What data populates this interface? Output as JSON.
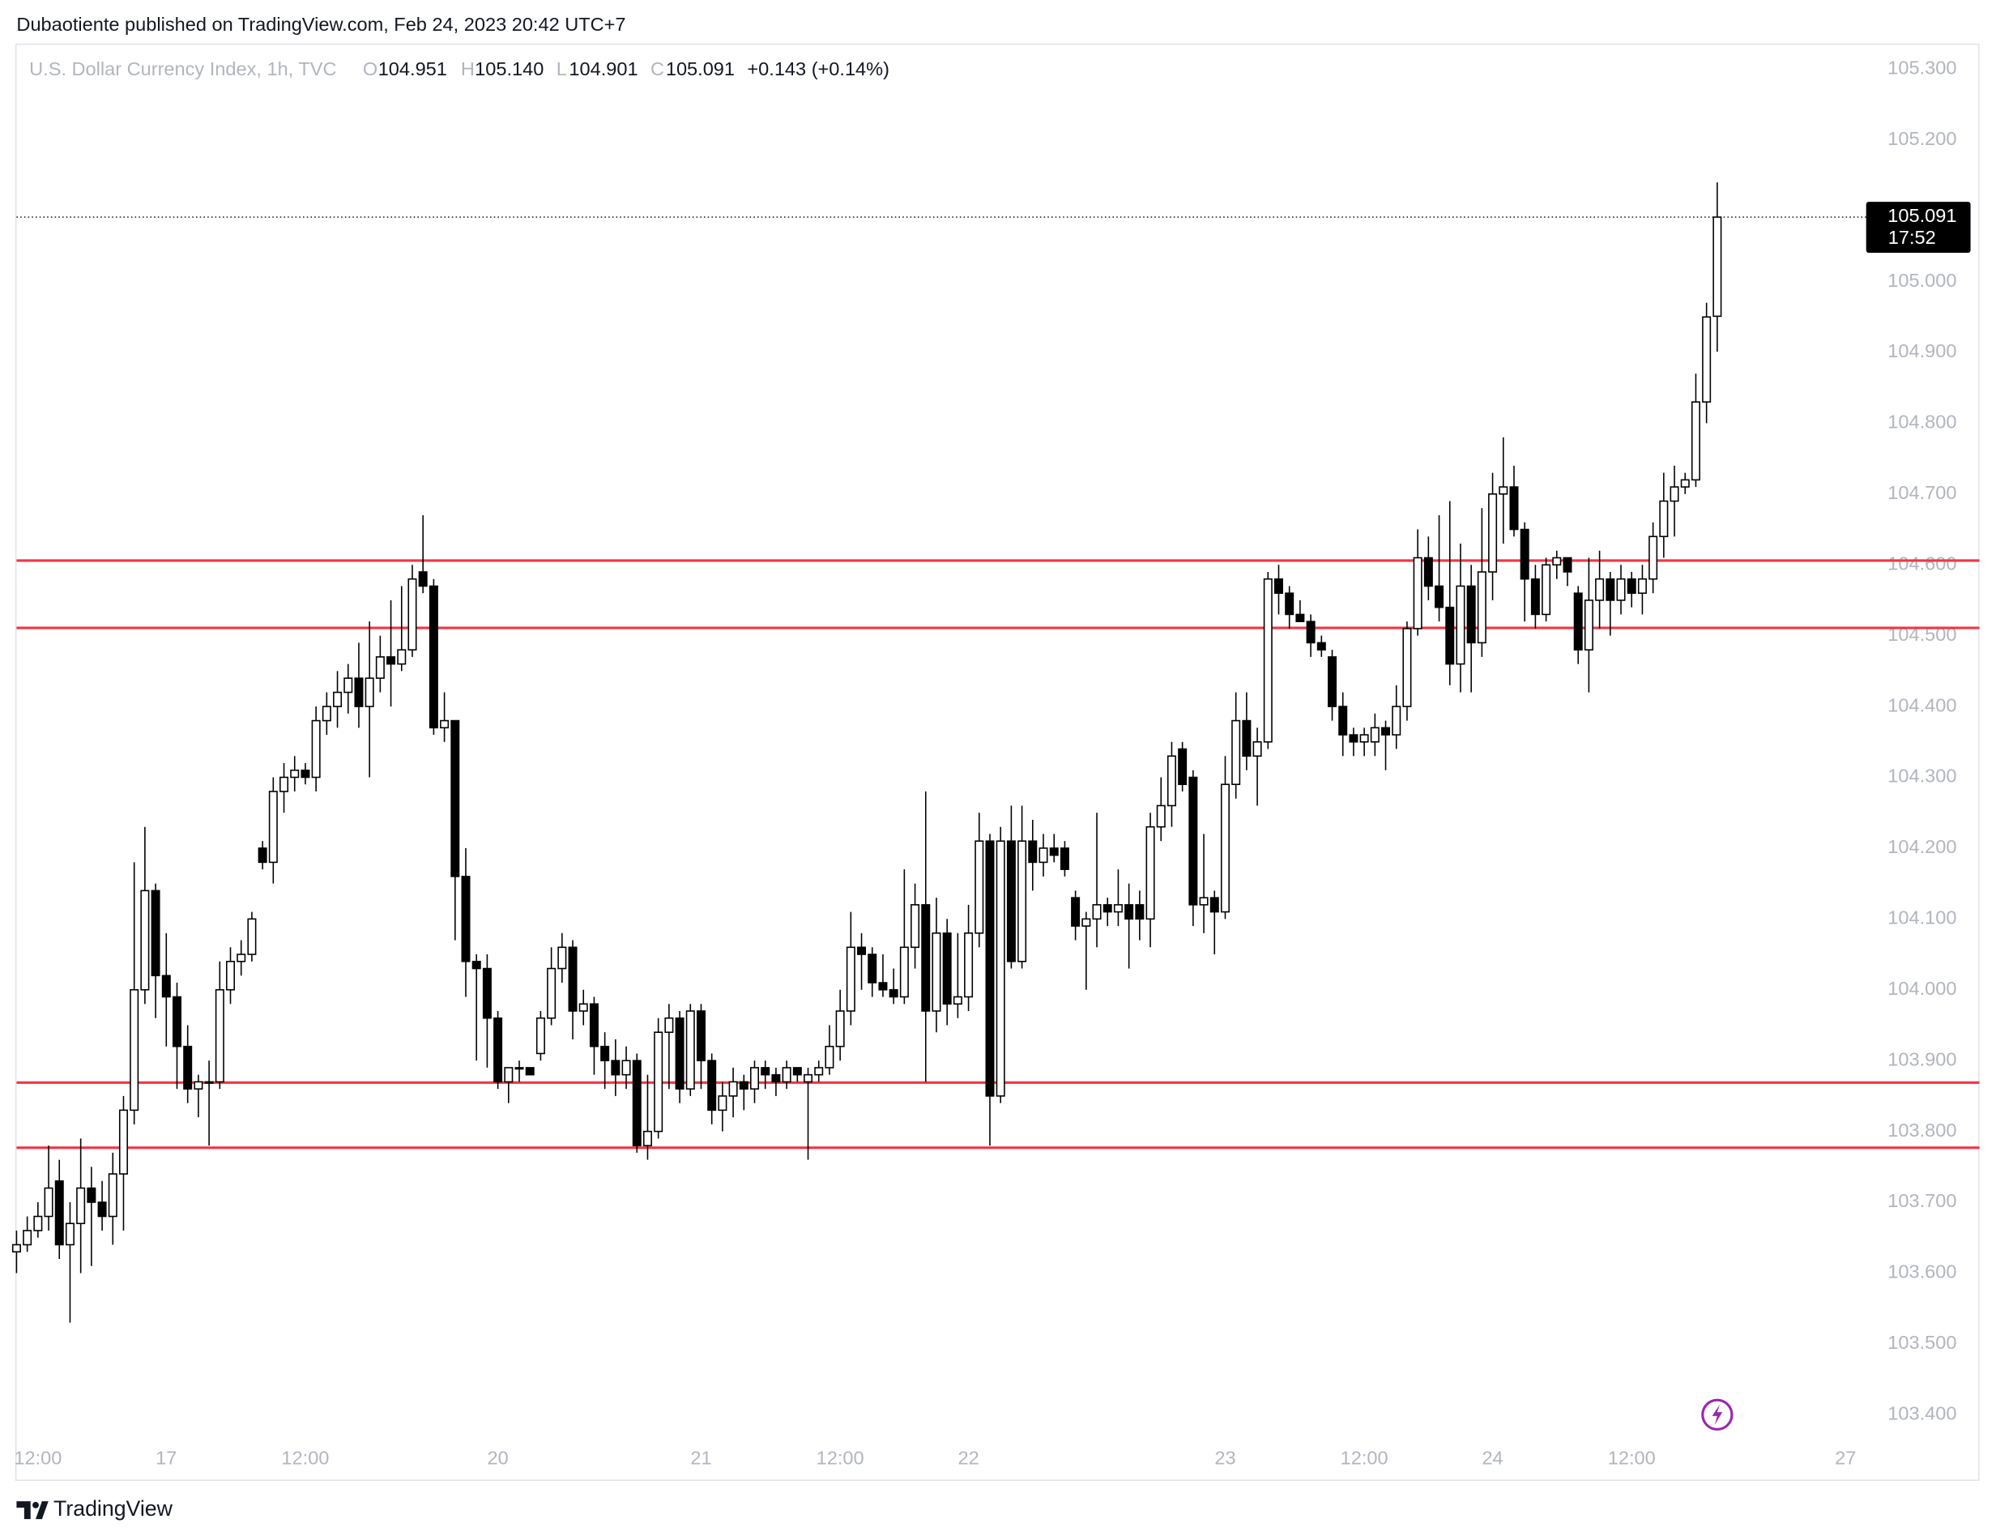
{
  "header": {
    "published": "Dubaotiente published on TradingView.com, Feb 24, 2023 20:42 UTC+7",
    "brand": "TradingView"
  },
  "chart_data": {
    "type": "candlestick",
    "symbol": "U.S. Dollar Currency Index, 1h, TVC",
    "legend": {
      "o_key": "O",
      "o": "104.951",
      "h_key": "H",
      "h": "105.140",
      "l_key": "L",
      "l": "104.901",
      "c_key": "C",
      "c": "105.091",
      "change": "+0.143 (+0.14%)"
    },
    "last_price_label": "105.091",
    "countdown": "17:52",
    "up_color": "#ffffff",
    "down_color": "#000000",
    "wick_color": "#000000",
    "hlines": [
      104.606,
      104.511,
      103.869,
      103.777
    ],
    "hline_color": "#f23645",
    "ylim": [
      103.4,
      105.3
    ],
    "yticks": [
      {
        "value": 103.4,
        "label": "103.400"
      },
      {
        "value": 103.5,
        "label": "103.500"
      },
      {
        "value": 103.6,
        "label": "103.600"
      },
      {
        "value": 103.7,
        "label": "103.700"
      },
      {
        "value": 103.8,
        "label": "103.800"
      },
      {
        "value": 103.9,
        "label": "103.900"
      },
      {
        "value": 104.0,
        "label": "104.000"
      },
      {
        "value": 104.1,
        "label": "104.100"
      },
      {
        "value": 104.2,
        "label": "104.200"
      },
      {
        "value": 104.3,
        "label": "104.300"
      },
      {
        "value": 104.4,
        "label": "104.400"
      },
      {
        "value": 104.5,
        "label": "104.500"
      },
      {
        "value": 104.6,
        "label": "104.600"
      },
      {
        "value": 104.7,
        "label": "104.700"
      },
      {
        "value": 104.8,
        "label": "104.800"
      },
      {
        "value": 104.9,
        "label": "104.900"
      },
      {
        "value": 105.0,
        "label": "105.000"
      },
      {
        "value": 105.1,
        "label": "105.100"
      },
      {
        "value": 105.2,
        "label": "105.200"
      },
      {
        "value": 105.3,
        "label": "105.300"
      }
    ],
    "xticks": [
      {
        "value": 2,
        "label": "12:00"
      },
      {
        "value": 14,
        "label": "17"
      },
      {
        "value": 27,
        "label": "12:00"
      },
      {
        "value": 45,
        "label": "20"
      },
      {
        "value": 64,
        "label": "21"
      },
      {
        "value": 77,
        "label": "12:00"
      },
      {
        "value": 89,
        "label": "22"
      },
      {
        "value": 113,
        "label": "23"
      },
      {
        "value": 126,
        "label": "12:00"
      },
      {
        "value": 138,
        "label": "24"
      },
      {
        "value": 151,
        "label": "12:00"
      },
      {
        "value": 171,
        "label": "27"
      }
    ],
    "candles": [
      [
        103.63,
        103.66,
        103.6,
        103.64
      ],
      [
        103.64,
        103.68,
        103.63,
        103.66
      ],
      [
        103.66,
        103.7,
        103.65,
        103.68
      ],
      [
        103.68,
        103.78,
        103.66,
        103.72
      ],
      [
        103.73,
        103.76,
        103.62,
        103.64
      ],
      [
        103.64,
        103.7,
        103.53,
        103.67
      ],
      [
        103.67,
        103.79,
        103.6,
        103.72
      ],
      [
        103.72,
        103.75,
        103.61,
        103.7
      ],
      [
        103.7,
        103.73,
        103.66,
        103.68
      ],
      [
        103.68,
        103.77,
        103.64,
        103.74
      ],
      [
        103.74,
        103.85,
        103.66,
        103.83
      ],
      [
        103.83,
        104.18,
        103.81,
        104.0
      ],
      [
        104.0,
        104.23,
        103.98,
        104.14
      ],
      [
        104.14,
        104.15,
        103.96,
        104.02
      ],
      [
        104.02,
        104.08,
        103.92,
        103.99
      ],
      [
        103.99,
        104.01,
        103.86,
        103.92
      ],
      [
        103.92,
        103.95,
        103.84,
        103.86
      ],
      [
        103.86,
        103.88,
        103.82,
        103.87
      ],
      [
        103.87,
        103.9,
        103.78,
        103.87
      ],
      [
        103.87,
        104.04,
        103.86,
        104.0
      ],
      [
        104.0,
        104.06,
        103.98,
        104.04
      ],
      [
        104.04,
        104.07,
        104.02,
        104.05
      ],
      [
        104.05,
        104.11,
        104.04,
        104.1
      ],
      [
        104.2,
        104.21,
        104.17,
        104.18
      ],
      [
        104.18,
        104.3,
        104.15,
        104.28
      ],
      [
        104.28,
        104.32,
        104.25,
        104.3
      ],
      [
        104.3,
        104.33,
        104.28,
        104.31
      ],
      [
        104.31,
        104.32,
        104.29,
        104.3
      ],
      [
        104.3,
        104.4,
        104.28,
        104.38
      ],
      [
        104.38,
        104.42,
        104.36,
        104.4
      ],
      [
        104.4,
        104.45,
        104.37,
        104.42
      ],
      [
        104.42,
        104.46,
        104.39,
        104.44
      ],
      [
        104.44,
        104.49,
        104.37,
        104.4
      ],
      [
        104.4,
        104.52,
        104.3,
        104.44
      ],
      [
        104.44,
        104.5,
        104.42,
        104.47
      ],
      [
        104.47,
        104.55,
        104.4,
        104.46
      ],
      [
        104.46,
        104.57,
        104.45,
        104.48
      ],
      [
        104.48,
        104.6,
        104.47,
        104.58
      ],
      [
        104.59,
        104.67,
        104.56,
        104.57
      ],
      [
        104.57,
        104.58,
        104.36,
        104.37
      ],
      [
        104.37,
        104.42,
        104.35,
        104.38
      ],
      [
        104.38,
        104.38,
        104.07,
        104.16
      ],
      [
        104.16,
        104.2,
        103.99,
        104.04
      ],
      [
        104.04,
        104.05,
        103.9,
        104.03
      ],
      [
        104.03,
        104.05,
        103.89,
        103.96
      ],
      [
        103.96,
        103.97,
        103.86,
        103.87
      ],
      [
        103.87,
        103.89,
        103.84,
        103.89
      ],
      [
        103.89,
        103.9,
        103.87,
        103.89
      ],
      [
        103.89,
        103.89,
        103.88,
        103.88
      ],
      [
        103.91,
        103.97,
        103.9,
        103.96
      ],
      [
        103.96,
        104.06,
        103.95,
        104.03
      ],
      [
        104.03,
        104.08,
        104.01,
        104.06
      ],
      [
        104.06,
        104.07,
        103.93,
        103.97
      ],
      [
        103.97,
        104.0,
        103.95,
        103.98
      ],
      [
        103.98,
        103.99,
        103.88,
        103.92
      ],
      [
        103.92,
        103.94,
        103.86,
        103.9
      ],
      [
        103.9,
        103.93,
        103.85,
        103.88
      ],
      [
        103.88,
        103.92,
        103.86,
        103.9
      ],
      [
        103.9,
        103.91,
        103.77,
        103.78
      ],
      [
        103.78,
        103.88,
        103.76,
        103.8
      ],
      [
        103.8,
        103.96,
        103.79,
        103.94
      ],
      [
        103.94,
        103.98,
        103.86,
        103.96
      ],
      [
        103.96,
        103.97,
        103.84,
        103.86
      ],
      [
        103.86,
        103.98,
        103.85,
        103.97
      ],
      [
        103.97,
        103.98,
        103.86,
        103.9
      ],
      [
        103.9,
        103.91,
        103.81,
        103.83
      ],
      [
        103.83,
        103.87,
        103.8,
        103.85
      ],
      [
        103.85,
        103.89,
        103.82,
        103.87
      ],
      [
        103.87,
        103.88,
        103.83,
        103.86
      ],
      [
        103.86,
        103.9,
        103.84,
        103.89
      ],
      [
        103.89,
        103.9,
        103.86,
        103.88
      ],
      [
        103.88,
        103.89,
        103.85,
        103.87
      ],
      [
        103.87,
        103.9,
        103.86,
        103.89
      ],
      [
        103.89,
        103.89,
        103.87,
        103.88
      ],
      [
        103.87,
        103.89,
        103.76,
        103.88
      ],
      [
        103.88,
        103.9,
        103.87,
        103.89
      ],
      [
        103.89,
        103.95,
        103.88,
        103.92
      ],
      [
        103.92,
        104.0,
        103.9,
        103.97
      ],
      [
        103.97,
        104.11,
        103.95,
        104.06
      ],
      [
        104.06,
        104.08,
        104.0,
        104.05
      ],
      [
        104.05,
        104.06,
        103.99,
        104.01
      ],
      [
        104.01,
        104.05,
        103.99,
        104.0
      ],
      [
        104.0,
        104.03,
        103.98,
        103.99
      ],
      [
        103.99,
        104.17,
        103.98,
        104.06
      ],
      [
        104.06,
        104.15,
        104.03,
        104.12
      ],
      [
        104.12,
        104.28,
        103.87,
        103.97
      ],
      [
        103.97,
        104.13,
        103.94,
        104.08
      ],
      [
        104.08,
        104.1,
        103.95,
        103.98
      ],
      [
        103.98,
        104.08,
        103.96,
        103.99
      ],
      [
        103.99,
        104.12,
        103.97,
        104.08
      ],
      [
        104.08,
        104.25,
        104.06,
        104.21
      ],
      [
        104.21,
        104.22,
        103.78,
        103.85
      ],
      [
        103.85,
        104.23,
        103.84,
        104.21
      ],
      [
        104.21,
        104.26,
        104.03,
        104.04
      ],
      [
        104.04,
        104.26,
        104.03,
        104.21
      ],
      [
        104.21,
        104.24,
        104.14,
        104.18
      ],
      [
        104.18,
        104.22,
        104.16,
        104.2
      ],
      [
        104.2,
        104.22,
        104.18,
        104.19
      ],
      [
        104.2,
        104.21,
        104.16,
        104.17
      ],
      [
        104.13,
        104.14,
        104.07,
        104.09
      ],
      [
        104.09,
        104.11,
        104.0,
        104.1
      ],
      [
        104.1,
        104.25,
        104.06,
        104.12
      ],
      [
        104.12,
        104.13,
        104.09,
        104.11
      ],
      [
        104.11,
        104.17,
        104.09,
        104.12
      ],
      [
        104.12,
        104.15,
        104.03,
        104.1
      ],
      [
        104.12,
        104.14,
        104.07,
        104.1
      ],
      [
        104.1,
        104.25,
        104.06,
        104.23
      ],
      [
        104.23,
        104.3,
        104.21,
        104.26
      ],
      [
        104.26,
        104.35,
        104.23,
        104.33
      ],
      [
        104.34,
        104.35,
        104.28,
        104.29
      ],
      [
        104.3,
        104.31,
        104.09,
        104.12
      ],
      [
        104.12,
        104.22,
        104.08,
        104.13
      ],
      [
        104.13,
        104.14,
        104.05,
        104.11
      ],
      [
        104.11,
        104.33,
        104.1,
        104.29
      ],
      [
        104.29,
        104.42,
        104.27,
        104.38
      ],
      [
        104.38,
        104.42,
        104.31,
        104.33
      ],
      [
        104.33,
        104.37,
        104.26,
        104.35
      ],
      [
        104.35,
        104.59,
        104.34,
        104.58
      ],
      [
        104.58,
        104.6,
        104.53,
        104.56
      ],
      [
        104.56,
        104.57,
        104.51,
        104.53
      ],
      [
        104.53,
        104.55,
        104.52,
        104.52
      ],
      [
        104.52,
        104.53,
        104.47,
        104.49
      ],
      [
        104.49,
        104.5,
        104.47,
        104.48
      ],
      [
        104.47,
        104.48,
        104.38,
        104.4
      ],
      [
        104.4,
        104.42,
        104.33,
        104.36
      ],
      [
        104.36,
        104.37,
        104.33,
        104.35
      ],
      [
        104.35,
        104.37,
        104.33,
        104.36
      ],
      [
        104.35,
        104.39,
        104.33,
        104.37
      ],
      [
        104.37,
        104.38,
        104.31,
        104.36
      ],
      [
        104.36,
        104.43,
        104.34,
        104.4
      ],
      [
        104.4,
        104.52,
        104.38,
        104.51
      ],
      [
        104.51,
        104.65,
        104.5,
        104.61
      ],
      [
        104.61,
        104.64,
        104.55,
        104.57
      ],
      [
        104.57,
        104.67,
        104.52,
        104.54
      ],
      [
        104.54,
        104.69,
        104.43,
        104.46
      ],
      [
        104.46,
        104.63,
        104.42,
        104.57
      ],
      [
        104.57,
        104.6,
        104.42,
        104.49
      ],
      [
        104.49,
        104.68,
        104.47,
        104.59
      ],
      [
        104.59,
        104.73,
        104.55,
        104.7
      ],
      [
        104.7,
        104.78,
        104.63,
        104.71
      ],
      [
        104.71,
        104.74,
        104.64,
        104.65
      ],
      [
        104.65,
        104.66,
        104.52,
        104.58
      ],
      [
        104.58,
        104.6,
        104.51,
        104.53
      ],
      [
        104.53,
        104.61,
        104.52,
        104.6
      ],
      [
        104.6,
        104.62,
        104.58,
        104.61
      ],
      [
        104.61,
        104.61,
        104.57,
        104.59
      ],
      [
        104.56,
        104.57,
        104.46,
        104.48
      ],
      [
        104.48,
        104.61,
        104.42,
        104.55
      ],
      [
        104.55,
        104.62,
        104.51,
        104.58
      ],
      [
        104.58,
        104.59,
        104.5,
        104.55
      ],
      [
        104.55,
        104.6,
        104.53,
        104.58
      ],
      [
        104.58,
        104.59,
        104.54,
        104.56
      ],
      [
        104.56,
        104.6,
        104.53,
        104.58
      ],
      [
        104.58,
        104.66,
        104.56,
        104.64
      ],
      [
        104.64,
        104.73,
        104.61,
        104.69
      ],
      [
        104.69,
        104.74,
        104.64,
        104.71
      ],
      [
        104.71,
        104.73,
        104.7,
        104.72
      ],
      [
        104.72,
        104.87,
        104.71,
        104.83
      ],
      [
        104.83,
        104.97,
        104.8,
        104.95
      ],
      [
        104.951,
        105.14,
        104.901,
        105.091
      ]
    ]
  }
}
